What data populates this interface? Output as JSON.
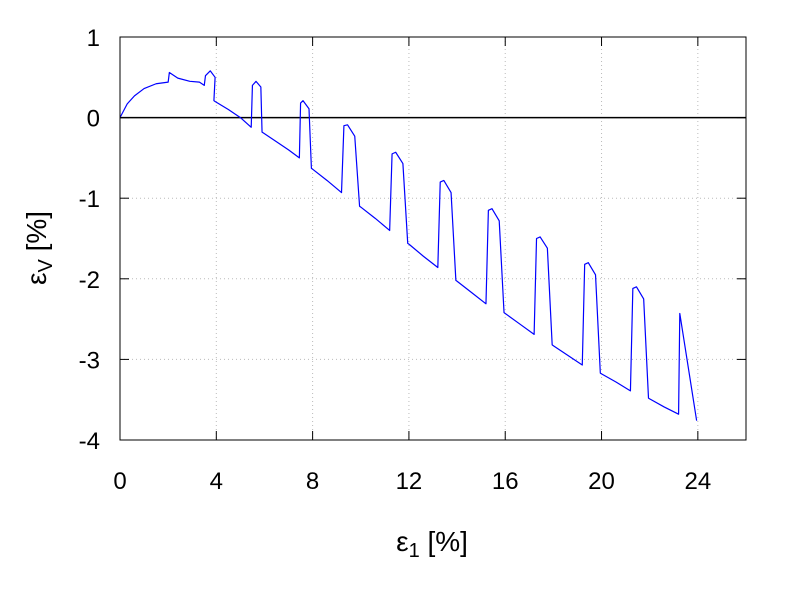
{
  "chart_data": {
    "type": "line",
    "title": "",
    "xlabel": {
      "symbol": "ε",
      "subscript": "1",
      "unit": " [%]"
    },
    "ylabel": {
      "symbol": "ε",
      "subscript": "V",
      "unit": " [%]"
    },
    "xlim": [
      0,
      26
    ],
    "ylim": [
      -4,
      1
    ],
    "xticks": [
      0,
      4,
      8,
      12,
      16,
      20,
      24
    ],
    "yticks": [
      -4,
      -3,
      -2,
      -1,
      0,
      1
    ],
    "grid": true,
    "legend": "none",
    "zero_line": 0,
    "colors": {
      "series": "#0000ff",
      "axes": "#000000",
      "grid": "#bbbbbb"
    },
    "series": [
      {
        "values": [
          [
            0,
            0
          ],
          [
            0.3,
            0.17
          ],
          [
            0.6,
            0.27
          ],
          [
            1.0,
            0.36
          ],
          [
            1.5,
            0.42
          ],
          [
            2.0,
            0.44
          ],
          [
            2.05,
            0.56
          ],
          [
            2.4,
            0.49
          ],
          [
            2.9,
            0.45
          ],
          [
            3.3,
            0.44
          ],
          [
            3.5,
            0.4
          ],
          [
            3.55,
            0.52
          ],
          [
            3.75,
            0.58
          ],
          [
            3.95,
            0.5
          ],
          [
            3.9,
            0.21
          ],
          [
            3.95,
            0.2
          ],
          [
            4.5,
            0.1
          ],
          [
            5.0,
            0.0
          ],
          [
            5.45,
            -0.12
          ],
          [
            5.5,
            0.4
          ],
          [
            5.65,
            0.45
          ],
          [
            5.85,
            0.38
          ],
          [
            5.9,
            -0.18
          ],
          [
            5.95,
            -0.19
          ],
          [
            6.5,
            -0.3
          ],
          [
            7.0,
            -0.4
          ],
          [
            7.45,
            -0.5
          ],
          [
            7.5,
            0.18
          ],
          [
            7.6,
            0.21
          ],
          [
            7.85,
            0.11
          ],
          [
            7.95,
            -0.63
          ],
          [
            8.0,
            -0.64
          ],
          [
            8.6,
            -0.78
          ],
          [
            9.2,
            -0.93
          ],
          [
            9.3,
            -0.1
          ],
          [
            9.45,
            -0.09
          ],
          [
            9.75,
            -0.23
          ],
          [
            9.95,
            -1.1
          ],
          [
            10.0,
            -1.11
          ],
          [
            10.6,
            -1.25
          ],
          [
            11.2,
            -1.4
          ],
          [
            11.3,
            -0.45
          ],
          [
            11.45,
            -0.43
          ],
          [
            11.75,
            -0.57
          ],
          [
            11.95,
            -1.56
          ],
          [
            12.0,
            -1.57
          ],
          [
            12.6,
            -1.72
          ],
          [
            13.2,
            -1.86
          ],
          [
            13.3,
            -0.8
          ],
          [
            13.45,
            -0.78
          ],
          [
            13.75,
            -0.93
          ],
          [
            13.95,
            -2.02
          ],
          [
            14.0,
            -2.03
          ],
          [
            14.6,
            -2.17
          ],
          [
            15.2,
            -2.31
          ],
          [
            15.3,
            -1.15
          ],
          [
            15.45,
            -1.13
          ],
          [
            15.75,
            -1.28
          ],
          [
            15.95,
            -2.42
          ],
          [
            16.0,
            -2.43
          ],
          [
            16.6,
            -2.56
          ],
          [
            17.2,
            -2.69
          ],
          [
            17.3,
            -1.5
          ],
          [
            17.45,
            -1.48
          ],
          [
            17.75,
            -1.62
          ],
          [
            17.95,
            -2.82
          ],
          [
            18.0,
            -2.83
          ],
          [
            18.6,
            -2.95
          ],
          [
            19.2,
            -3.07
          ],
          [
            19.3,
            -1.82
          ],
          [
            19.45,
            -1.8
          ],
          [
            19.75,
            -1.95
          ],
          [
            19.95,
            -3.17
          ],
          [
            20.0,
            -3.18
          ],
          [
            20.6,
            -3.28
          ],
          [
            21.2,
            -3.39
          ],
          [
            21.3,
            -2.12
          ],
          [
            21.45,
            -2.1
          ],
          [
            21.75,
            -2.25
          ],
          [
            21.95,
            -3.48
          ],
          [
            22.0,
            -3.49
          ],
          [
            22.6,
            -3.59
          ],
          [
            23.2,
            -3.68
          ],
          [
            23.25,
            -2.43
          ],
          [
            23.95,
            -3.76
          ]
        ]
      }
    ]
  }
}
